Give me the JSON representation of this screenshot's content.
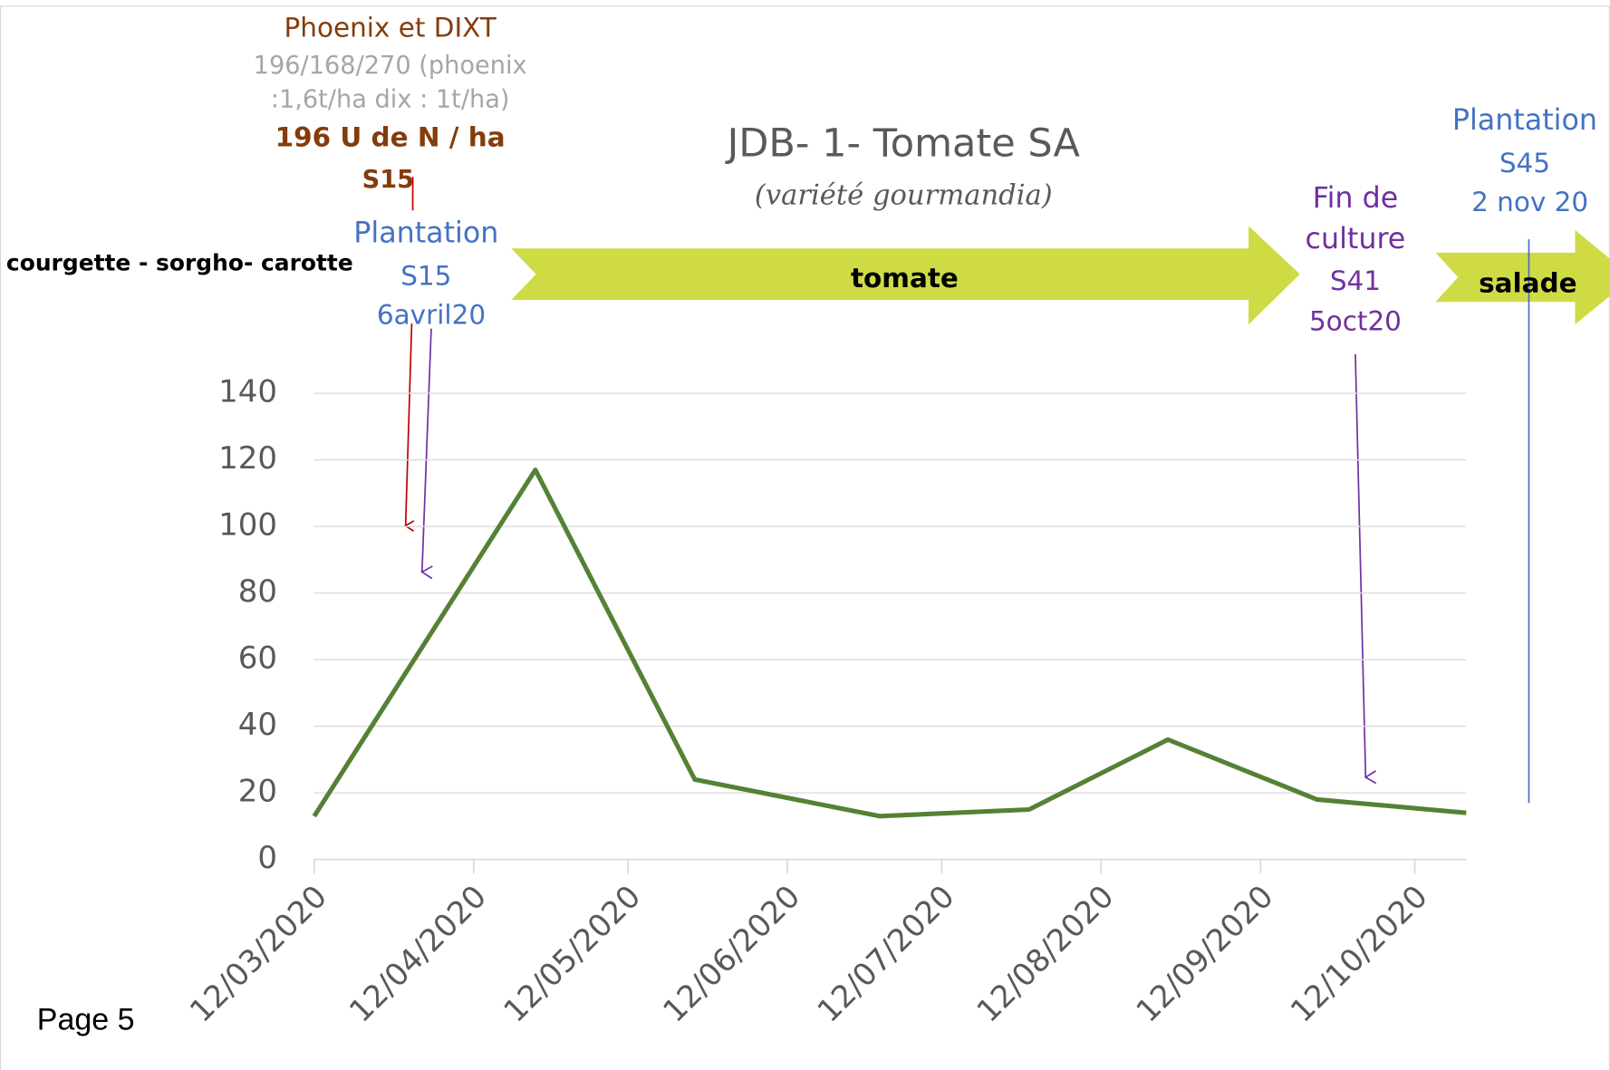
{
  "page": "Page 5",
  "chart_data": {
    "type": "line",
    "title": "JDB- 1- Tomate SA",
    "subtitle": "(variété gourmandia)",
    "x": [
      "2020-03-12",
      "2020-04-24",
      "2020-05-25",
      "2020-06-30",
      "2020-07-29",
      "2020-08-25",
      "2020-09-23",
      "2020-10-22"
    ],
    "series": [
      {
        "color": "#548235",
        "values": [
          13,
          117,
          24,
          13,
          15,
          36,
          18,
          14
        ]
      }
    ],
    "xlim": [
      "2020-03-12",
      "2020-10-22"
    ],
    "xticks": [
      {
        "value": "2020-03-12",
        "label": "12/03/2020"
      },
      {
        "value": "2020-04-12",
        "label": "12/04/2020"
      },
      {
        "value": "2020-05-12",
        "label": "12/05/2020"
      },
      {
        "value": "2020-06-12",
        "label": "12/06/2020"
      },
      {
        "value": "2020-07-12",
        "label": "12/07/2020"
      },
      {
        "value": "2020-08-12",
        "label": "12/08/2020"
      },
      {
        "value": "2020-09-12",
        "label": "12/09/2020"
      },
      {
        "value": "2020-10-12",
        "label": "12/10/2020"
      }
    ],
    "ylim": [
      0,
      140
    ],
    "yticks": [
      0,
      20,
      40,
      60,
      80,
      100,
      120,
      140
    ],
    "grid": true,
    "annotations": [
      {
        "text": "Phoenix et DIXT",
        "color": "#843c0c"
      },
      {
        "text": "196/168/270 (phoenix",
        "color": "#a6a6a6"
      },
      {
        "text": ":1,6t/ha dix : 1t/ha)",
        "color": "#a6a6a6"
      },
      {
        "text": "196 U de N / ha",
        "color": "#843c0c"
      },
      {
        "text": "S15",
        "color": "#843c0c"
      },
      {
        "text": "Plantation",
        "color": "#4472c4"
      },
      {
        "text": "S15",
        "color": "#4472c4"
      },
      {
        "text": "6avril20",
        "color": "#4472c4"
      },
      {
        "text": "courgette - sorgho- carotte",
        "color": "#000000"
      },
      {
        "text": "tomate",
        "color": "#000000"
      },
      {
        "text": "Fin de",
        "color": "#7030a0"
      },
      {
        "text": "culture",
        "color": "#7030a0"
      },
      {
        "text": "S41",
        "color": "#7030a0"
      },
      {
        "text": "5oct20",
        "color": "#7030a0"
      },
      {
        "text": "salade",
        "color": "#000000"
      },
      {
        "text": "Plantation",
        "color": "#4472c4"
      },
      {
        "text": "S45",
        "color": "#4472c4"
      },
      {
        "text": "2 nov 20",
        "color": "#4472c4"
      }
    ]
  }
}
